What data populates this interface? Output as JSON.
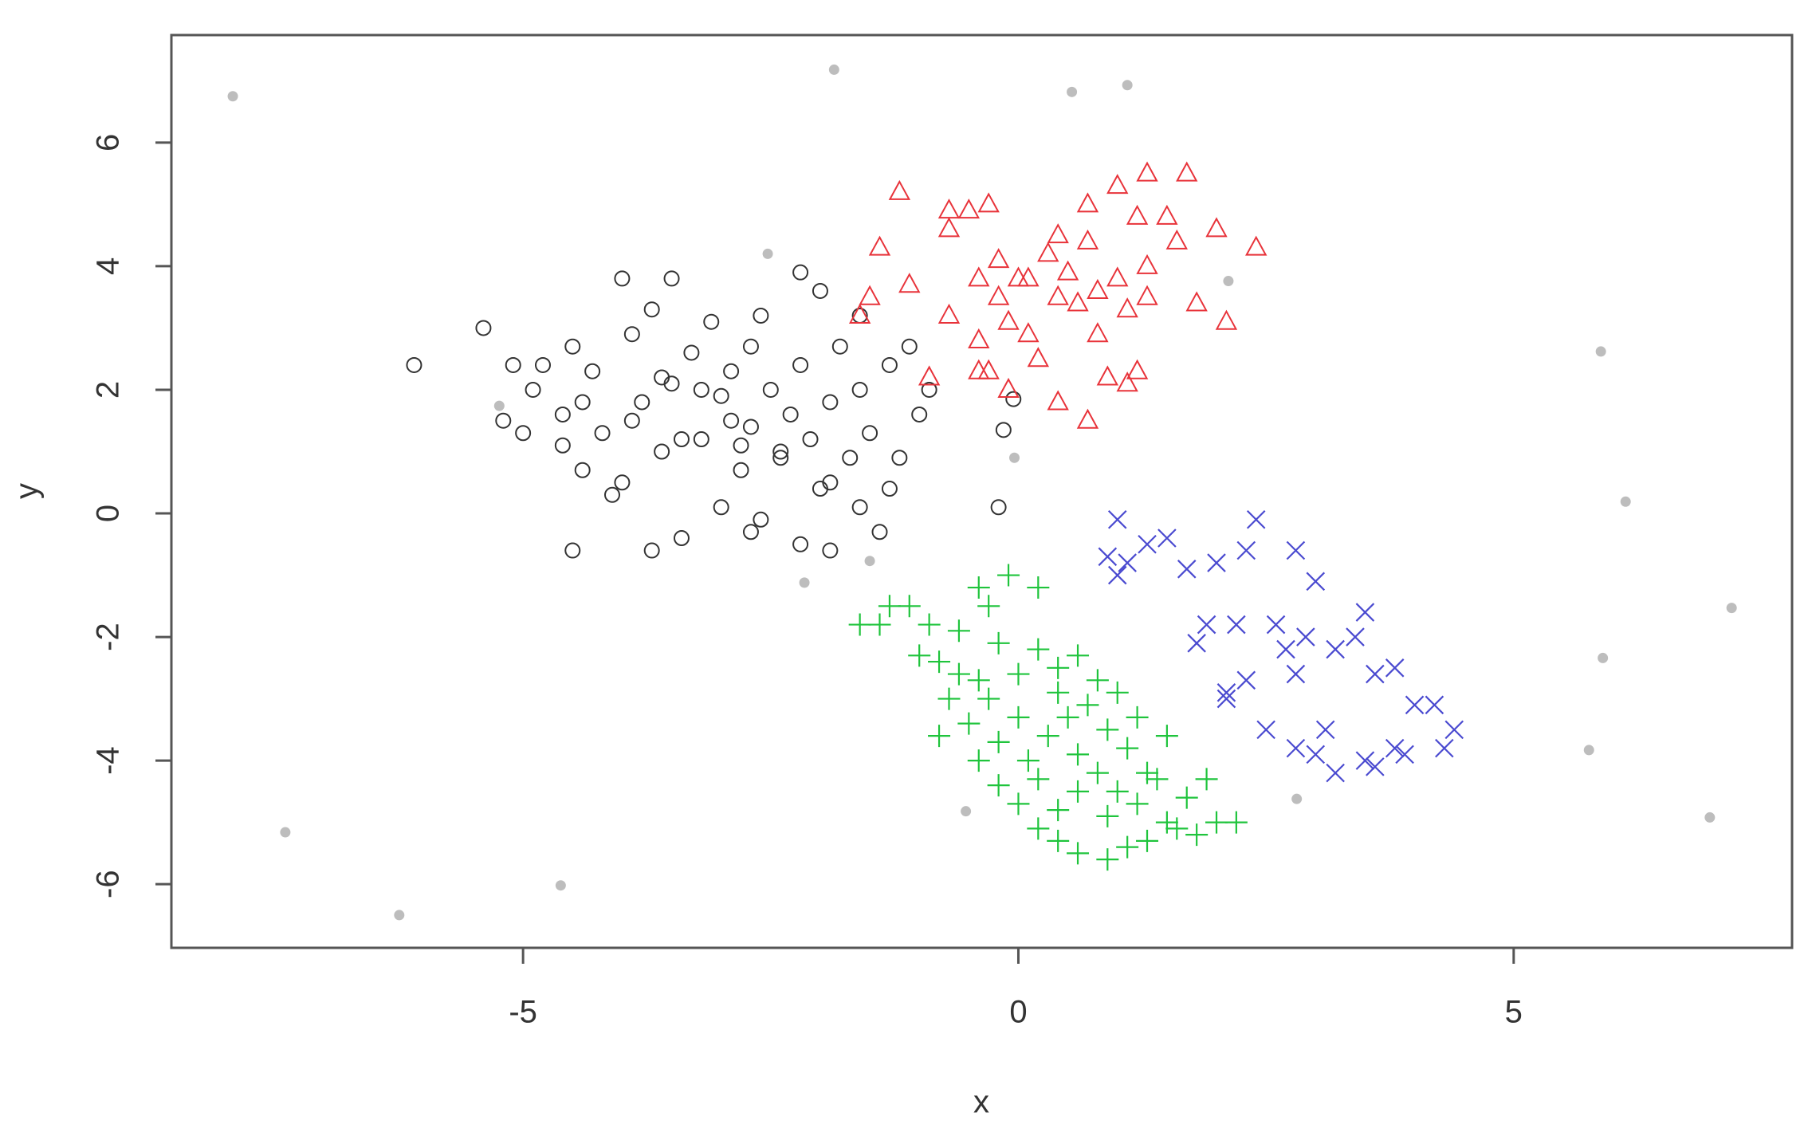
{
  "chart_data": {
    "type": "scatter",
    "xlabel": "x",
    "ylabel": "y",
    "xlim": [
      -8.55,
      7.81
    ],
    "ylim": [
      -7.03,
      7.74
    ],
    "xticks": [
      -5,
      0,
      5
    ],
    "yticks": [
      -6,
      -4,
      -2,
      0,
      2,
      4,
      6
    ],
    "series": [
      {
        "color": "#333333",
        "marker": "circle",
        "x": [
          -6.1,
          -5.4,
          -5.2,
          -5.1,
          -5.0,
          -4.9,
          -4.8,
          -4.6,
          -4.5,
          -4.4,
          -4.3,
          -4.2,
          -4.1,
          -4.0,
          -4.0,
          -3.9,
          -3.8,
          -3.7,
          -3.6,
          -3.5,
          -3.4,
          -3.3,
          -3.2,
          -3.1,
          -3.0,
          -3.0,
          -2.9,
          -2.8,
          -2.7,
          -2.7,
          -2.6,
          -2.5,
          -2.4,
          -2.3,
          -2.2,
          -2.2,
          -2.1,
          -2.0,
          -2.0,
          -1.9,
          -1.8,
          -1.7,
          -1.6,
          -1.5,
          -1.4,
          -1.3,
          -1.2,
          -1.3,
          -1.9,
          -2.6,
          -3.7,
          -4.5,
          -4.4,
          -3.6,
          -3.2,
          -2.9,
          -2.4,
          -2.8,
          -3.4,
          -1.9,
          -1.0,
          -0.9,
          -1.6,
          -1.1,
          -3.9,
          -2.2,
          -2.7,
          -3.5,
          -1.6,
          -4.6,
          -0.2,
          -0.05,
          -0.15
        ],
        "y": [
          2.4,
          3.0,
          1.5,
          2.4,
          1.3,
          2.0,
          2.4,
          1.6,
          2.7,
          0.7,
          2.3,
          1.3,
          0.3,
          0.5,
          3.8,
          2.9,
          1.8,
          3.3,
          1.0,
          2.1,
          -0.4,
          2.6,
          1.2,
          3.1,
          0.1,
          1.9,
          2.3,
          0.7,
          -0.3,
          1.4,
          3.2,
          2.0,
          0.9,
          1.6,
          -0.5,
          2.4,
          1.2,
          0.4,
          3.6,
          1.8,
          2.7,
          0.9,
          3.2,
          1.3,
          -0.3,
          2.4,
          0.9,
          0.4,
          -0.6,
          -0.1,
          -0.6,
          -0.6,
          1.8,
          2.2,
          2.0,
          1.5,
          1.0,
          1.1,
          1.2,
          0.5,
          1.6,
          2.0,
          0.1,
          2.7,
          1.5,
          3.9,
          2.7,
          3.8,
          2.0,
          1.1,
          0.1,
          1.85,
          1.35
        ]
      },
      {
        "color": "#e8333a",
        "marker": "triangle",
        "x": [
          -1.2,
          -1.4,
          -1.1,
          -1.6,
          -1.5,
          -0.9,
          -0.7,
          -0.7,
          -0.5,
          -0.3,
          -0.7,
          -0.4,
          -0.4,
          -0.3,
          -0.2,
          -0.2,
          -0.1,
          -0.1,
          0.0,
          0.1,
          0.2,
          0.1,
          0.3,
          0.4,
          0.4,
          0.5,
          0.6,
          0.7,
          0.7,
          0.8,
          0.8,
          0.9,
          1.0,
          1.0,
          1.1,
          1.2,
          1.3,
          1.3,
          1.3,
          1.5,
          1.6,
          1.7,
          1.8,
          2.0,
          2.1,
          2.4,
          0.4,
          0.7,
          1.1,
          1.2,
          -0.4
        ],
        "y": [
          5.2,
          4.3,
          3.7,
          3.2,
          3.5,
          2.2,
          4.6,
          4.9,
          4.9,
          5.0,
          3.2,
          3.8,
          2.8,
          2.3,
          4.1,
          3.5,
          3.1,
          2.0,
          3.8,
          2.9,
          2.5,
          3.8,
          4.2,
          4.5,
          3.5,
          3.9,
          3.4,
          4.4,
          5.0,
          2.9,
          3.6,
          2.2,
          3.8,
          5.3,
          3.3,
          4.8,
          5.5,
          4.0,
          3.5,
          4.8,
          4.4,
          5.5,
          3.4,
          4.6,
          3.1,
          4.3,
          1.8,
          1.5,
          2.1,
          2.3,
          2.3
        ]
      },
      {
        "color": "#1fc43c",
        "marker": "plus",
        "x": [
          -1.6,
          -1.4,
          -1.3,
          -1.1,
          -0.9,
          -0.8,
          -1.0,
          -0.6,
          -0.6,
          -0.4,
          -0.3,
          -0.1,
          0.2,
          -0.2,
          0.0,
          0.2,
          0.4,
          0.6,
          0.8,
          -0.7,
          -0.5,
          -0.3,
          -0.2,
          0.0,
          0.1,
          0.3,
          0.4,
          0.5,
          0.6,
          0.7,
          0.9,
          1.0,
          1.1,
          1.2,
          1.3,
          1.5,
          -0.4,
          -0.2,
          0.0,
          0.2,
          0.4,
          0.6,
          0.8,
          0.9,
          1.0,
          1.2,
          1.4,
          1.5,
          1.7,
          1.9,
          2.0,
          2.2,
          1.8,
          0.2,
          0.4,
          0.6,
          0.9,
          1.1,
          1.3,
          1.6,
          -0.8,
          -0.4
        ],
        "y": [
          -1.8,
          -1.8,
          -1.5,
          -1.5,
          -1.8,
          -2.4,
          -2.3,
          -1.9,
          -2.6,
          -1.2,
          -1.5,
          -1.0,
          -1.2,
          -2.1,
          -2.6,
          -2.2,
          -2.5,
          -2.3,
          -2.7,
          -3.0,
          -3.4,
          -3.0,
          -3.7,
          -3.3,
          -4.0,
          -3.6,
          -2.9,
          -3.3,
          -3.9,
          -3.1,
          -3.5,
          -2.9,
          -3.8,
          -3.3,
          -4.2,
          -3.6,
          -4.0,
          -4.4,
          -4.7,
          -4.3,
          -4.8,
          -4.5,
          -4.2,
          -4.9,
          -4.5,
          -4.7,
          -4.3,
          -5.0,
          -4.6,
          -4.3,
          -5.0,
          -5.0,
          -5.2,
          -5.1,
          -5.3,
          -5.5,
          -5.6,
          -5.4,
          -5.3,
          -5.1,
          -3.6,
          -2.7
        ]
      },
      {
        "color": "#4a4ad0",
        "marker": "cross",
        "x": [
          1.0,
          0.9,
          1.0,
          1.1,
          1.3,
          1.5,
          1.7,
          2.0,
          2.3,
          2.4,
          2.8,
          3.0,
          1.8,
          1.9,
          2.2,
          2.3,
          2.1,
          2.6,
          2.7,
          2.9,
          2.8,
          3.2,
          3.4,
          3.5,
          3.6,
          3.8,
          2.5,
          2.8,
          3.0,
          3.1,
          3.2,
          3.5,
          3.8,
          4.0,
          4.2,
          4.3,
          4.4,
          3.6,
          3.9,
          2.1
        ],
        "y": [
          -0.1,
          -0.7,
          -1.0,
          -0.8,
          -0.5,
          -0.4,
          -0.9,
          -0.8,
          -0.6,
          -0.1,
          -0.6,
          -1.1,
          -2.1,
          -1.8,
          -1.8,
          -2.7,
          -3.0,
          -1.8,
          -2.2,
          -2.0,
          -2.6,
          -2.2,
          -2.0,
          -1.6,
          -2.6,
          -2.5,
          -3.5,
          -3.8,
          -3.9,
          -3.5,
          -4.2,
          -4.0,
          -3.8,
          -3.1,
          -3.1,
          -3.8,
          -3.5,
          -4.1,
          -3.9,
          -2.9
        ]
      },
      {
        "color": "#bdbdbd",
        "marker": "dot",
        "x": [
          -7.93,
          -1.86,
          0.54,
          1.1,
          5.88,
          6.13,
          7.2,
          5.9,
          5.76,
          6.98,
          -7.4,
          -6.25,
          -4.62,
          -0.53,
          2.81,
          -2.16,
          -1.5,
          -0.04,
          -2.53,
          2.12,
          -5.24
        ],
        "y": [
          6.75,
          7.18,
          6.82,
          6.93,
          2.62,
          0.19,
          -1.53,
          -2.34,
          -3.83,
          -4.92,
          -5.16,
          -6.5,
          -6.02,
          -4.82,
          -4.62,
          -1.12,
          -0.77,
          0.9,
          4.2,
          3.76,
          1.74
        ]
      }
    ]
  }
}
